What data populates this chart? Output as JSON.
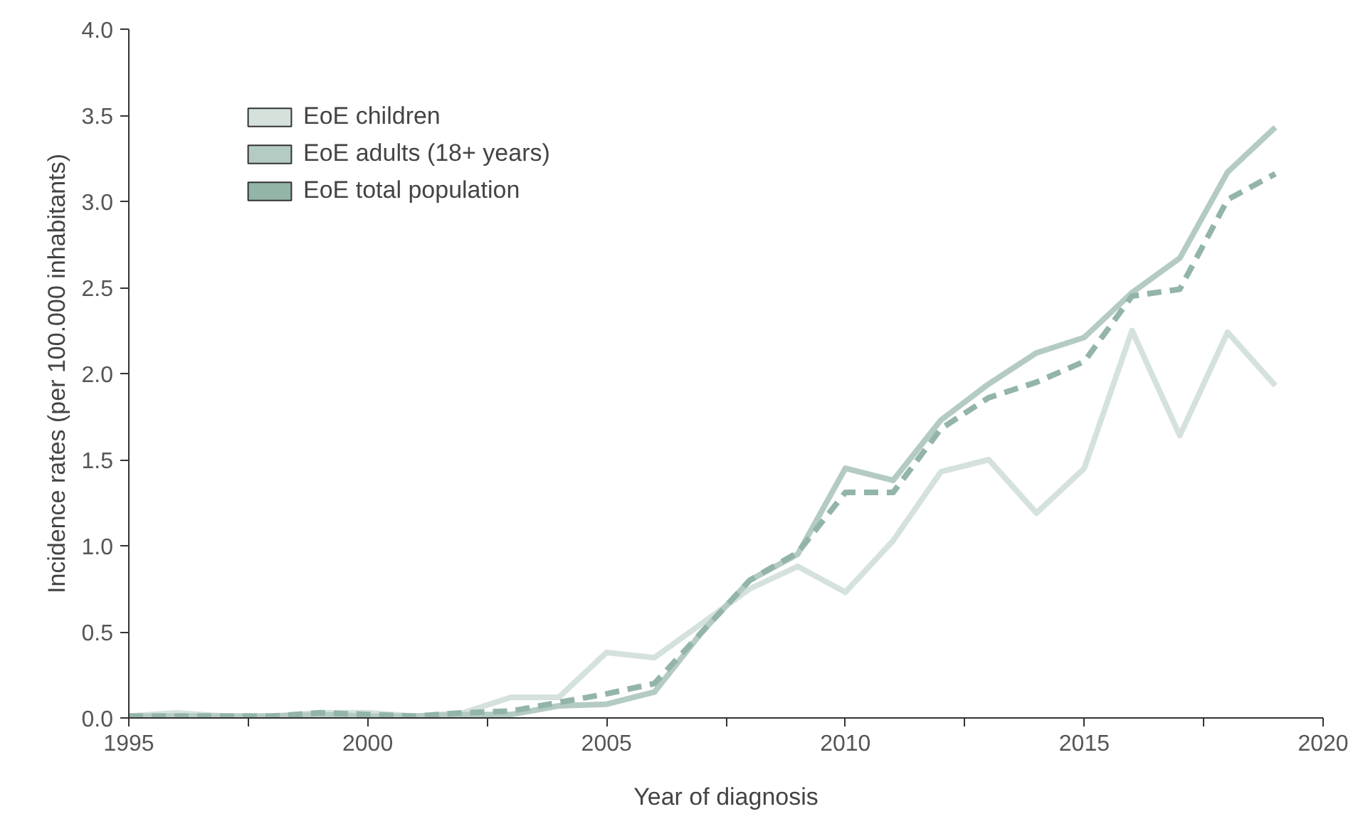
{
  "chart_data": {
    "type": "line",
    "xlabel": "Year of diagnosis",
    "ylabel": "Incidence rates (per 100.000 inhabitants)",
    "x": [
      1995,
      1996,
      1997,
      1998,
      1999,
      2000,
      2001,
      2002,
      2003,
      2004,
      2005,
      2006,
      2007,
      2008,
      2009,
      2010,
      2011,
      2012,
      2013,
      2014,
      2015,
      2016,
      2017,
      2018,
      2019
    ],
    "series": [
      {
        "name": "EoE children",
        "color": "#d5e2dc",
        "line_style": "solid",
        "values": [
          0.01,
          0.03,
          0.01,
          0.01,
          0.03,
          0.03,
          0.01,
          0.03,
          0.12,
          0.12,
          0.38,
          0.35,
          0.55,
          0.75,
          0.88,
          0.73,
          1.03,
          1.43,
          1.5,
          1.19,
          1.45,
          2.25,
          1.64,
          2.24,
          1.93
        ]
      },
      {
        "name": "EoE adults (18+ years)",
        "color": "#b4cbc3",
        "line_style": "solid",
        "values": [
          0.01,
          0.01,
          0.01,
          0.01,
          0.02,
          0.01,
          0.01,
          0.02,
          0.02,
          0.07,
          0.08,
          0.15,
          0.5,
          0.8,
          0.95,
          1.45,
          1.38,
          1.73,
          1.94,
          2.12,
          2.21,
          2.47,
          2.67,
          3.17,
          3.43
        ]
      },
      {
        "name": "EoE total population",
        "color": "#93b5a8",
        "line_style": "dashed",
        "values": [
          0.01,
          0.01,
          0.01,
          0.01,
          0.03,
          0.02,
          0.01,
          0.03,
          0.04,
          0.09,
          0.14,
          0.2,
          0.5,
          0.8,
          0.96,
          1.31,
          1.31,
          1.68,
          1.86,
          1.95,
          2.07,
          2.45,
          2.49,
          3.01,
          3.16
        ]
      }
    ],
    "xlim": [
      1995,
      2020
    ],
    "ylim": [
      0,
      4
    ],
    "xticks": [
      1995,
      {
        "value": 1997.5,
        "label": null
      },
      2000,
      {
        "value": 2002.5,
        "label": null
      },
      2005,
      {
        "value": 2007.5,
        "label": null
      },
      2010,
      {
        "value": 2012.5,
        "label": null
      },
      2015,
      {
        "value": 2017.5,
        "label": null
      },
      2020
    ],
    "yticks": [
      {
        "value": 0,
        "label": "0.0"
      },
      {
        "value": 0.5,
        "label": "0.5"
      },
      {
        "value": 1,
        "label": "1.0"
      },
      {
        "value": 1.5,
        "label": "1.5"
      },
      {
        "value": 2,
        "label": "2.0"
      },
      {
        "value": 2.5,
        "label": "2.5"
      },
      {
        "value": 3,
        "label": "3.0"
      },
      {
        "value": 3.5,
        "label": "3.5"
      },
      {
        "value": 4,
        "label": "4.0"
      }
    ],
    "grid": false,
    "legend": "top left",
    "marker": "none"
  }
}
